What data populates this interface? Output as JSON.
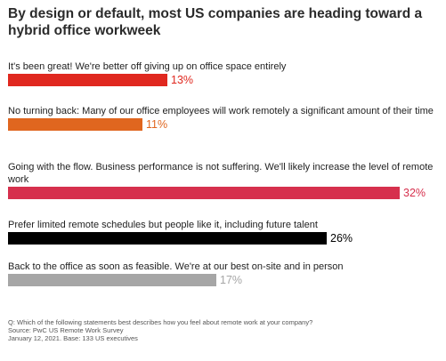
{
  "chart_data": {
    "type": "bar",
    "orientation": "horizontal",
    "title": "By design or default, most US companies are heading toward a hybrid office workweek",
    "categories": [
      "It's been great! We're better off giving up on office space entirely",
      "No turning back: Many of our office employees will work remotely a significant amount of their time",
      "Going with the flow. Business performance is not suffering. We'll likely increase the level of remote work",
      "Prefer limited remote schedules but people like it, including future talent",
      "Back to the office as soon as feasible. We're at our best on-site and in person"
    ],
    "values": [
      13,
      11,
      32,
      26,
      17
    ],
    "value_labels": [
      "13%",
      "11%",
      "32%",
      "26%",
      "17%"
    ],
    "colors": [
      "#e0281f",
      "#e0661f",
      "#d6304d",
      "#000000",
      "#a6a6a6"
    ],
    "label_colors": [
      "#e0281f",
      "#e0661f",
      "#d6304d",
      "#000000",
      "#a6a6a6"
    ],
    "xlim": [
      0,
      32
    ],
    "grid": false,
    "legend": "none"
  },
  "footer": {
    "question": "Q: Which of the following statements best describes how you feel about remote work at your company?",
    "source": "Source: PwC US Remote Work Survey",
    "date_base": "January 12, 2021. Base: 133 US executives"
  }
}
